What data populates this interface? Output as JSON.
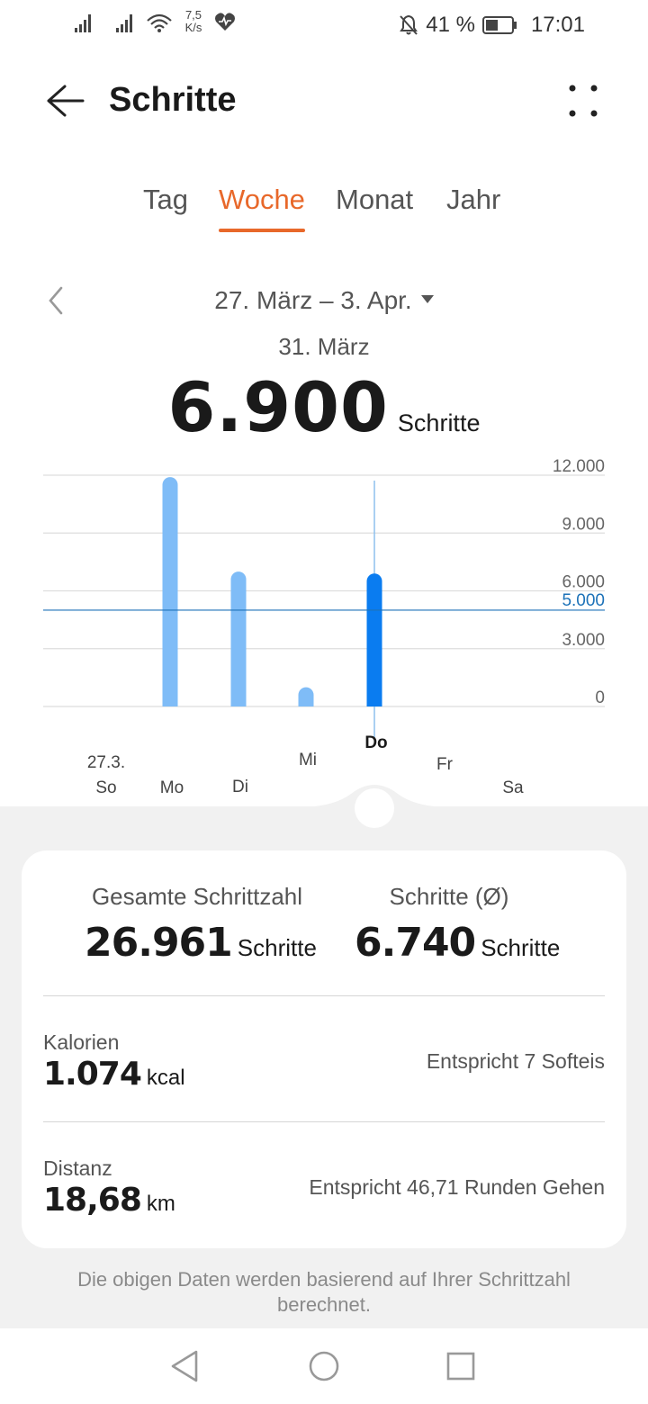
{
  "status_bar": {
    "net_speed_value": "7,5",
    "net_speed_unit": "K/s",
    "battery_percent": "41 %",
    "time": "17:01",
    "icons": [
      "signal-icon",
      "signal-icon",
      "wifi-icon",
      "health-heart-icon",
      "bell-off-icon",
      "battery-icon"
    ]
  },
  "header": {
    "title": "Schritte",
    "back_icon": "back-arrow-icon",
    "more_icon": "more-dots-icon"
  },
  "tabs": [
    {
      "label": "Tag",
      "active": false
    },
    {
      "label": "Woche",
      "active": true
    },
    {
      "label": "Monat",
      "active": false
    },
    {
      "label": "Jahr",
      "active": false
    }
  ],
  "period": {
    "range": "27. März – 3. Apr.",
    "prev_icon": "chevron-left-icon"
  },
  "selected": {
    "date": "31. März",
    "value": "6.900",
    "unit": "Schritte"
  },
  "chart_data": {
    "type": "bar",
    "categories": [
      "So",
      "Mo",
      "Di",
      "Mi",
      "Do",
      "Fr",
      "Sa"
    ],
    "category_date_label": "27.3.",
    "values": [
      0,
      11900,
      7000,
      1000,
      6900,
      0,
      0
    ],
    "selected_index": 4,
    "ylim": [
      0,
      12000
    ],
    "y_ticks": [
      "12.000",
      "9.000",
      "6.000",
      "3.000",
      "0"
    ],
    "y_tick_values": [
      12000,
      9000,
      6000,
      3000,
      0
    ],
    "goal_value": 5000,
    "goal_label": "5.000",
    "grid": true,
    "colors": {
      "bar": "#7fbcf7",
      "bar_selected": "#0a7cf0",
      "goal_line": "#1d72b8",
      "goal_text": "#1d72b8",
      "grid": "#dddddd"
    }
  },
  "summary": {
    "total_label": "Gesamte Schrittzahl",
    "total_value": "26.961",
    "total_unit": "Schritte",
    "avg_label": "Schritte (Ø)",
    "avg_value": "6.740",
    "avg_unit": "Schritte",
    "calories_label": "Kalorien",
    "calories_value": "1.074",
    "calories_unit": "kcal",
    "calories_note": "Entspricht 7 Softeis",
    "distance_label": "Distanz",
    "distance_value": "18,68",
    "distance_unit": "km",
    "distance_note": "Entspricht 46,71 Runden Gehen"
  },
  "footnote": "Die obigen Daten werden basierend auf Ihrer Schrittzahl berechnet.",
  "navbar": {
    "icons": [
      "nav-back-icon",
      "nav-home-icon",
      "nav-recents-icon"
    ]
  },
  "theme": {
    "accent": "#e8682a"
  }
}
